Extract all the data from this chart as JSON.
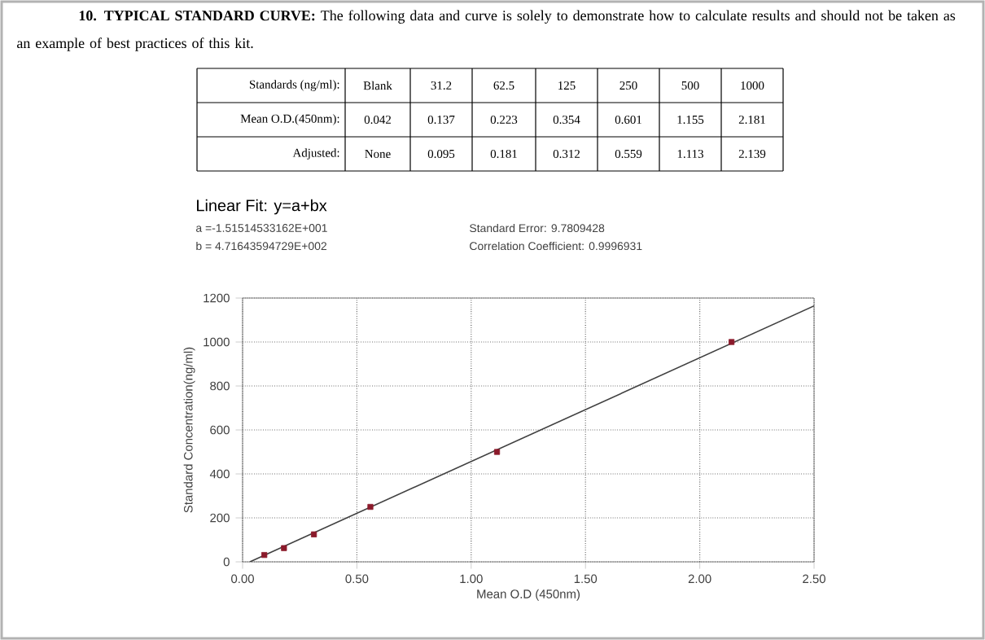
{
  "chart_data": {
    "type": "scatter",
    "title": "**10. TYPICAL STANDARD CURVE:** The following data and curve is solely to demonstrate how to calculate results and should not be taken as an example of best practices of this kit.",
    "subtitle": "Linear Fit: y=a+bx",
    "annotations": [
      "Standards (ng/ml):",
      "Blank",
      "31.2",
      "62.5",
      "125",
      "250",
      "500",
      "1000",
      "Mean O.D.(450nm):",
      "0.042",
      "0.137",
      "0.223",
      "0.354",
      "0.601",
      "1.155",
      "2.181",
      "Adjusted:",
      "None",
      "0.095",
      "0.181",
      "0.312",
      "0.559",
      "1.113",
      "2.139",
      "a =-1.51514533162E+001",
      "b = 4.71643594729E+002",
      "Standard Error: 9.7809428",
      "Correlation Coefficient: 0.9996931"
    ],
    "xlabel": "Mean O.D (450nm)",
    "ylabel": "Standard Concentration(ng/ml)",
    "xlim": [
      0,
      2.5
    ],
    "ylim": [
      0,
      1200
    ],
    "xticks": [
      {
        "value": 0,
        "label": "0.00"
      },
      {
        "value": 0.5,
        "label": "0.50"
      },
      {
        "value": 1,
        "label": "1.00"
      },
      {
        "value": 1.5,
        "label": "1.50"
      },
      {
        "value": 2,
        "label": "2.00"
      },
      {
        "value": 2.5,
        "label": "2.50"
      }
    ],
    "yticks": [
      0,
      200,
      400,
      600,
      800,
      1000,
      1200
    ],
    "grid": true,
    "series": [
      {
        "type": "line",
        "color": "#404040",
        "line_style": "solid",
        "x": [
          0.032,
          2.5
        ],
        "values": [
          0,
          1164
        ]
      },
      {
        "type": "scatter",
        "color": "#8b1a2b",
        "marker": "square",
        "x": [
          0.095,
          0.181,
          0.312,
          0.559,
          1.113,
          2.139
        ],
        "values": [
          31.2,
          62.5,
          125,
          250,
          500,
          1000
        ]
      }
    ]
  }
}
